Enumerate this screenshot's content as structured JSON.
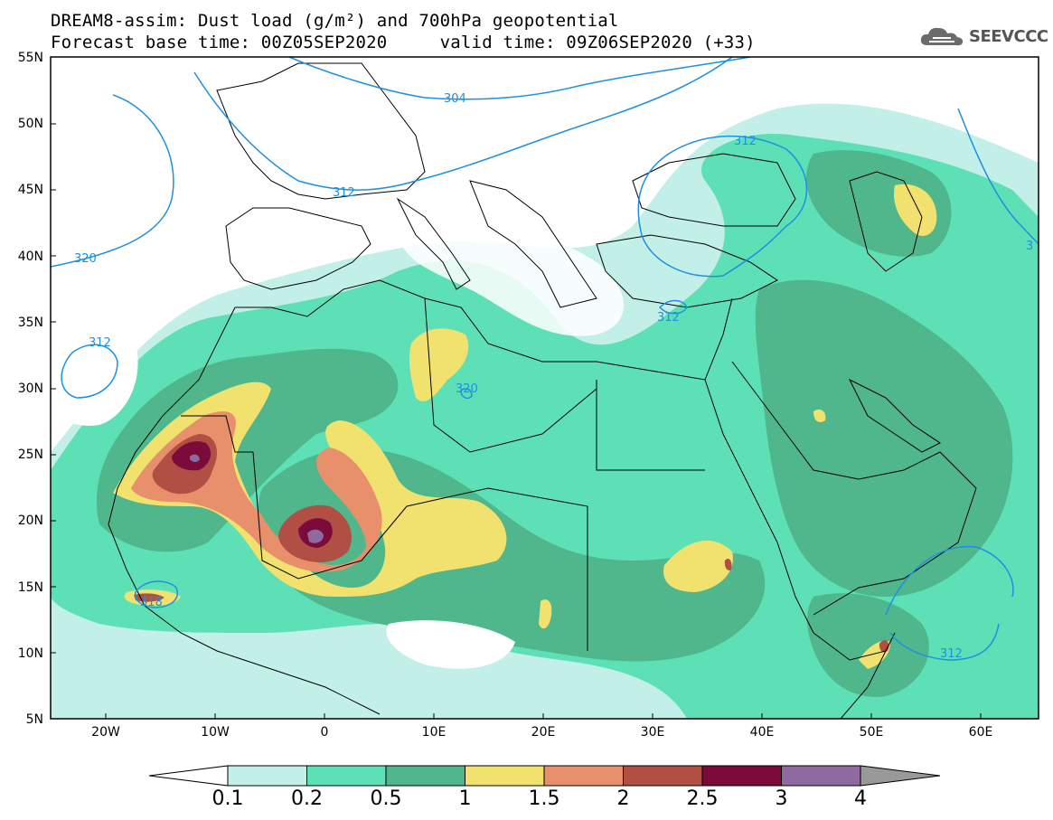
{
  "title_line1": "DREAM8-assim: Dust load (g/m²) and 700hPa geopotential",
  "title_line2": "Forecast base time: 00Z05SEP2020     valid time: 09Z06SEP2020 (+33)",
  "logo_text": "SEEVCCC",
  "lat_labels": [
    "55N",
    "50N",
    "45N",
    "40N",
    "35N",
    "30N",
    "25N",
    "20N",
    "15N",
    "10N",
    "5N"
  ],
  "lon_labels": [
    "20W",
    "10W",
    "0",
    "10E",
    "20E",
    "30E",
    "40E",
    "50E",
    "60E"
  ],
  "contour_labels": [
    "304",
    "312",
    "312",
    "320",
    "312",
    "320",
    "312",
    "318",
    "312",
    "3"
  ],
  "colorbar": {
    "labels": [
      "0.1",
      "0.2",
      "0.5",
      "1",
      "1.5",
      "2",
      "2.5",
      "3",
      "4"
    ],
    "colors": [
      "#c2efe8",
      "#5ee0b7",
      "#4fb78b",
      "#f1e16f",
      "#e88f6b",
      "#b24f44",
      "#7a0b3b",
      "#8e6aa0"
    ]
  },
  "colors": {
    "dust_0_1": "#c2efe8",
    "dust_0_2": "#5ee0b7",
    "dust_0_5": "#4fb78b",
    "dust_1": "#f1e16f",
    "dust_1_5": "#e88f6b",
    "dust_2": "#b24f44",
    "dust_2_5": "#7a0b3b",
    "dust_3": "#8e6aa0",
    "contour": "#1e90e0"
  }
}
